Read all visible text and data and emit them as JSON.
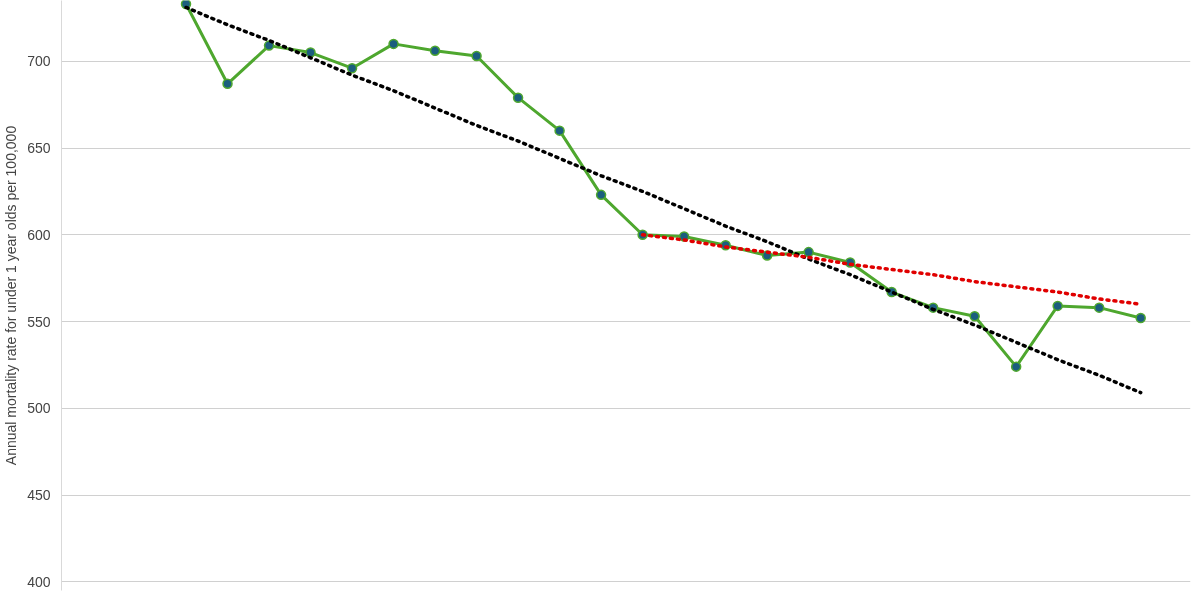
{
  "chart_data": {
    "type": "line",
    "ylabel": "Annual mortality rate for under 1 year olds per 100,000",
    "categories": [
      null,
      null,
      null,
      null,
      null,
      null,
      null,
      null,
      null,
      null,
      null,
      null,
      null,
      null,
      null,
      null,
      null,
      null,
      null,
      null,
      null,
      null,
      null,
      null
    ],
    "series": [
      {
        "color": "#4ea72e",
        "marker": "circle",
        "line_style": "solid",
        "values": [
          733,
          687,
          709,
          705,
          696,
          710,
          706,
          703,
          679,
          660,
          623,
          600,
          599,
          594,
          588,
          590,
          584,
          567,
          558,
          553,
          524,
          559,
          558,
          552
        ]
      },
      {
        "type": "line",
        "color": "#000000",
        "marker": "none",
        "line_style": "dotted",
        "values": [
          731,
          721,
          712,
          702,
          692,
          683,
          673,
          663,
          654,
          644,
          634,
          625,
          615,
          605,
          596,
          586,
          577,
          567,
          557,
          548,
          538,
          528,
          519,
          509
        ]
      },
      {
        "type": "line",
        "color": "#e00000",
        "marker": "none",
        "line_style": "dotted",
        "values": [
          null,
          null,
          null,
          null,
          null,
          null,
          null,
          null,
          null,
          null,
          null,
          600,
          597,
          593,
          590,
          587,
          583,
          580,
          577,
          573,
          570,
          567,
          563,
          560
        ]
      }
    ],
    "ylim": [
      395,
      735
    ],
    "yticks": [
      400,
      450,
      500,
      550,
      600,
      650,
      700
    ],
    "grid": "y",
    "tick_labels": "y"
  }
}
